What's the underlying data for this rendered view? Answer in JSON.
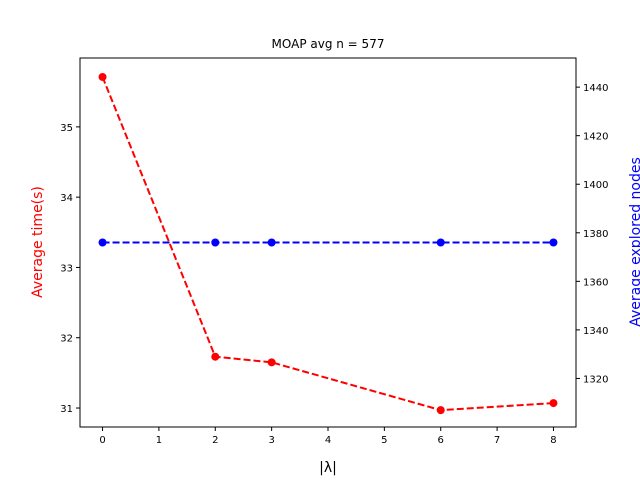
{
  "chart_data": {
    "type": "line",
    "title": "MOAP avg n = 577",
    "xlabel": "|λ|",
    "ylabel_left": "Average time(s)",
    "ylabel_right": "Average explored nodes",
    "xlim": [
      -0.4,
      8.4
    ],
    "xticks": [
      0,
      1,
      2,
      3,
      4,
      5,
      6,
      7,
      8
    ],
    "ylim_left": [
      30.73,
      35.98
    ],
    "yticks_left": [
      31,
      32,
      33,
      34,
      35
    ],
    "ylim_right": [
      1300,
      1452
    ],
    "yticks_right": [
      1320,
      1340,
      1360,
      1380,
      1400,
      1420,
      1440
    ],
    "grid": false,
    "series": [
      {
        "axis": "left",
        "color": "#ff0000",
        "linestyle": "dashed",
        "marker": "circle",
        "x": [
          0,
          2,
          3,
          6,
          8
        ],
        "y": [
          35.71,
          31.73,
          31.65,
          30.97,
          31.07
        ]
      },
      {
        "axis": "right",
        "color": "#0000ff",
        "linestyle": "dashed",
        "marker": "circle",
        "x": [
          0,
          2,
          3,
          6,
          8
        ],
        "y": [
          1376,
          1376,
          1376,
          1376,
          1376
        ]
      }
    ]
  }
}
